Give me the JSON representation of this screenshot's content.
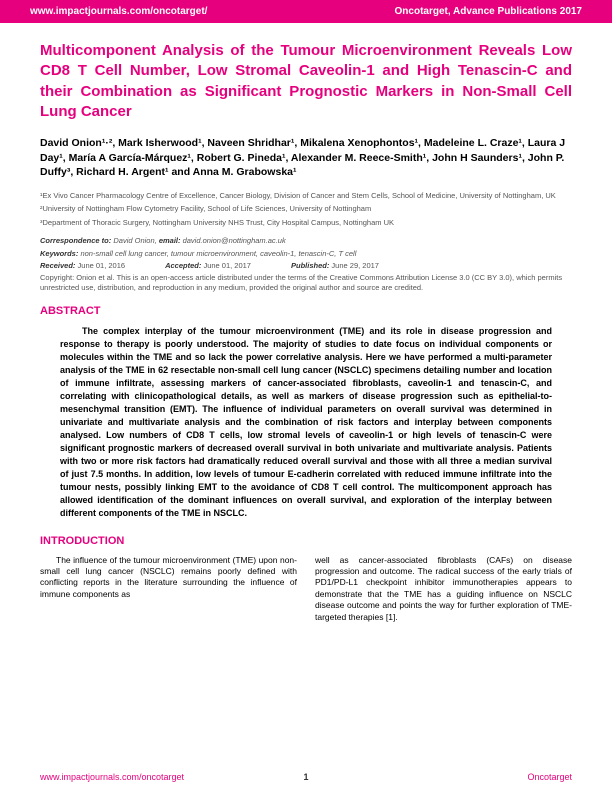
{
  "header": {
    "left": "www.impactjournals.com/oncotarget/",
    "right": "Oncotarget, Advance Publications 2017"
  },
  "title": "Multicomponent Analysis of the Tumour Microenvironment Reveals Low CD8 T Cell Number, Low Stromal Caveolin-1 and High Tenascin-C and their Combination as Significant Prognostic Markers in Non-Small Cell Lung Cancer",
  "authors": "David Onion¹·², Mark Isherwood¹, Naveen Shridhar¹, Mikalena Xenophontos¹, Madeleine L. Craze¹, Laura J Day¹, María A García-Márquez¹, Robert G. Pineda¹, Alexander M. Reece-Smith¹, John H Saunders¹, John P. Duffy³, Richard H. Argent¹ and Anna M. Grabowska¹",
  "affiliations": {
    "a1": "¹Ex Vivo Cancer Pharmacology Centre of Excellence, Cancer Biology, Division of Cancer and Stem Cells, School of Medicine, University of Nottingham, UK",
    "a2": "²University of Nottingham Flow Cytometry Facility, School of Life Sciences, University of Nottingham",
    "a3": "³Department of Thoracic Surgery, Nottingham University NHS Trust, City Hospital Campus, Nottingham UK"
  },
  "correspondence": {
    "label": "Correspondence to:",
    "name": "David Onion,",
    "emailLabel": "email:",
    "email": "david.onion@nottingham.ac.uk"
  },
  "keywords": {
    "label": "Keywords:",
    "text": "non-small cell lung cancer, tumour microenvironment, caveolin-1, tenascin-C, T cell"
  },
  "dates": {
    "received": {
      "label": "Received:",
      "value": "June 01, 2016"
    },
    "accepted": {
      "label": "Accepted:",
      "value": "June 01, 2017"
    },
    "published": {
      "label": "Published:",
      "value": "June 29, 2017"
    }
  },
  "copyright": {
    "label": "Copyright:",
    "text": "Onion et al. This is an open-access article distributed under the terms of the Creative Commons Attribution License 3.0 (CC BY 3.0), which permits unrestricted use, distribution, and reproduction in any medium, provided the original author and source are credited."
  },
  "abstract": {
    "head": "ABSTRACT",
    "text": "The complex interplay of the tumour microenvironment (TME) and its role in disease progression and response to therapy is poorly understood. The majority of studies to date focus on individual components or molecules within the TME and so lack the power correlative analysis. Here we have performed a multi-parameter analysis of the TME in 62 resectable non-small cell lung cancer (NSCLC) specimens detailing number and location of immune infiltrate, assessing markers of cancer-associated fibroblasts, caveolin-1 and tenascin-C, and correlating with clinicopathological details, as well as markers of disease progression such as epithelial-to-mesenchymal transition (EMT). The influence of individual parameters on overall survival was determined in univariate and multivariate analysis and the combination of risk factors and interplay between components analysed. Low numbers of CD8 T cells, low stromal levels of caveolin-1 or high levels of tenascin-C were significant prognostic markers of decreased overall survival in both univariate and multivariate analysis. Patients with two or more risk factors had dramatically reduced overall survival and those with all three a median survival of just 7.5 months. In addition, low levels of tumour E-cadherin correlated with reduced immune infiltrate into the tumour nests, possibly linking EMT to the avoidance of CD8 T cell control. The multicomponent approach has allowed identification of the dominant influences on overall survival, and exploration of the interplay between different components of the TME in NSCLC."
  },
  "intro": {
    "head": "INTRODUCTION",
    "col1": "The influence of the tumour microenvironment (TME) upon non-small cell lung cancer (NSCLC) remains poorly defined with conflicting reports in the literature surrounding the influence of immune components as",
    "col2": "well as cancer-associated fibroblasts (CAFs) on disease progression and outcome. The radical success of the early trials of PD1/PD-L1 checkpoint inhibitor immunotherapies appears to demonstrate that the TME has a guiding influence on NSCLC disease outcome and points the way for further exploration of TME-targeted therapies [1]."
  },
  "footer": {
    "left": "www.impactjournals.com/oncotarget",
    "page": "1",
    "right": "Oncotarget"
  },
  "colors": {
    "brand": "#e6007e",
    "text": "#000000",
    "meta": "#555555",
    "bg": "#ffffff"
  }
}
